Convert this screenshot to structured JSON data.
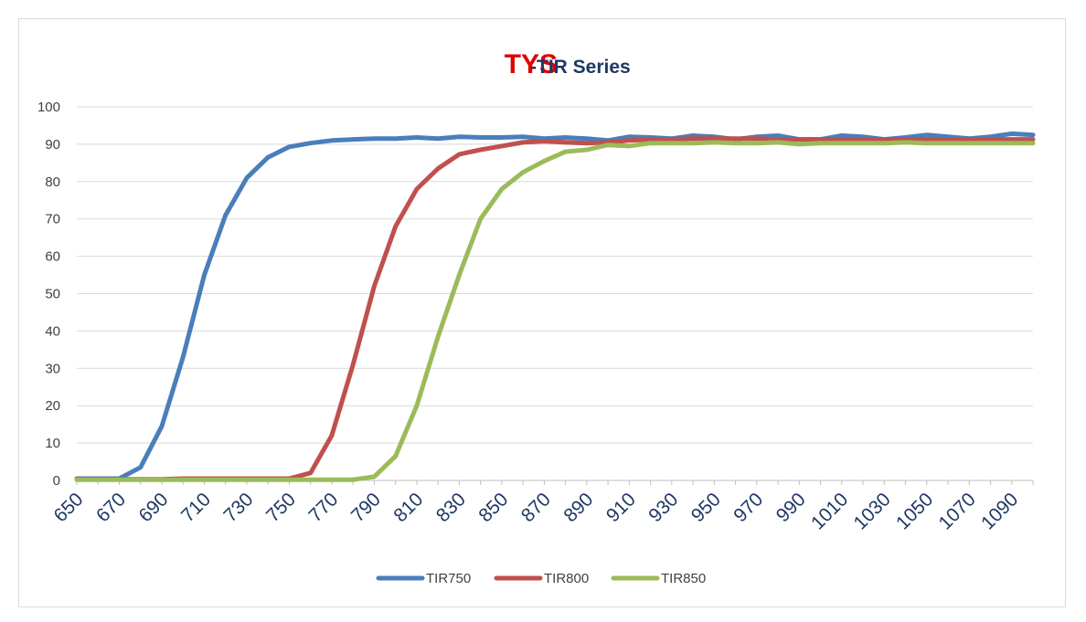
{
  "chart_data": {
    "type": "line",
    "title": "TYS",
    "subtitle": "-TIR Series",
    "title_color": "#e00000",
    "subtitle_color": "#1f3864",
    "xlabel": "",
    "ylabel": "",
    "ylim": [
      0,
      100
    ],
    "y_ticks": [
      "0",
      "10",
      "20",
      "30",
      "40",
      "50",
      "60",
      "70",
      "80",
      "90",
      "100"
    ],
    "x_tick_labels": [
      "650",
      "670",
      "690",
      "710",
      "730",
      "750",
      "770",
      "790",
      "810",
      "830",
      "850",
      "870",
      "890",
      "910",
      "930",
      "950",
      "970",
      "990",
      "1010",
      "1030",
      "1050",
      "1070",
      "1090"
    ],
    "x": [
      650,
      660,
      670,
      680,
      690,
      700,
      710,
      720,
      730,
      740,
      750,
      760,
      770,
      780,
      790,
      800,
      810,
      820,
      830,
      840,
      850,
      860,
      870,
      880,
      890,
      900,
      910,
      920,
      930,
      940,
      950,
      960,
      970,
      980,
      990,
      1000,
      1010,
      1020,
      1030,
      1040,
      1050,
      1060,
      1070,
      1080,
      1090,
      1100
    ],
    "grid": true,
    "legend_position": "bottom",
    "series": [
      {
        "name": "TIR750",
        "color": "#4a7ebb",
        "values": [
          0.5,
          0.5,
          0.5,
          3.5,
          14.5,
          33,
          55,
          71,
          81,
          86.5,
          89.3,
          90.3,
          91,
          91.3,
          91.5,
          91.5,
          91.8,
          91.5,
          92,
          91.8,
          91.8,
          92,
          91.5,
          91.8,
          91.5,
          91,
          92,
          91.8,
          91.5,
          92.3,
          92,
          91.3,
          92,
          92.3,
          91.3,
          91.3,
          92.3,
          92,
          91.3,
          91.8,
          92.5,
          92,
          91.5,
          92,
          92.8,
          92.5
        ]
      },
      {
        "name": "TIR800",
        "color": "#c0504d",
        "values": [
          0.3,
          0.3,
          0.3,
          0.3,
          0.3,
          0.5,
          0.5,
          0.5,
          0.5,
          0.5,
          0.5,
          2,
          12,
          31,
          52,
          68,
          78,
          83.5,
          87.3,
          88.5,
          89.5,
          90.5,
          90.8,
          90.5,
          90.3,
          90.5,
          91,
          91.3,
          91.3,
          91.5,
          91.5,
          91.5,
          91.5,
          91.3,
          91.3,
          91.3,
          91.3,
          91.3,
          91.3,
          91.3,
          91.3,
          91.3,
          91.3,
          91.3,
          91.3,
          91.3
        ]
      },
      {
        "name": "TIR850",
        "color": "#9bbb59",
        "values": [
          0.2,
          0.2,
          0.2,
          0.2,
          0.2,
          0.2,
          0.2,
          0.2,
          0.2,
          0.2,
          0.2,
          0.2,
          0.2,
          0.2,
          1,
          6.5,
          20,
          38.5,
          55,
          70,
          78,
          82.5,
          85.5,
          88,
          88.5,
          89.8,
          89.5,
          90.3,
          90.3,
          90.3,
          90.5,
          90.3,
          90.3,
          90.5,
          90,
          90.3,
          90.3,
          90.3,
          90.3,
          90.5,
          90.3,
          90.3,
          90.3,
          90.3,
          90.3,
          90.3
        ]
      }
    ]
  }
}
